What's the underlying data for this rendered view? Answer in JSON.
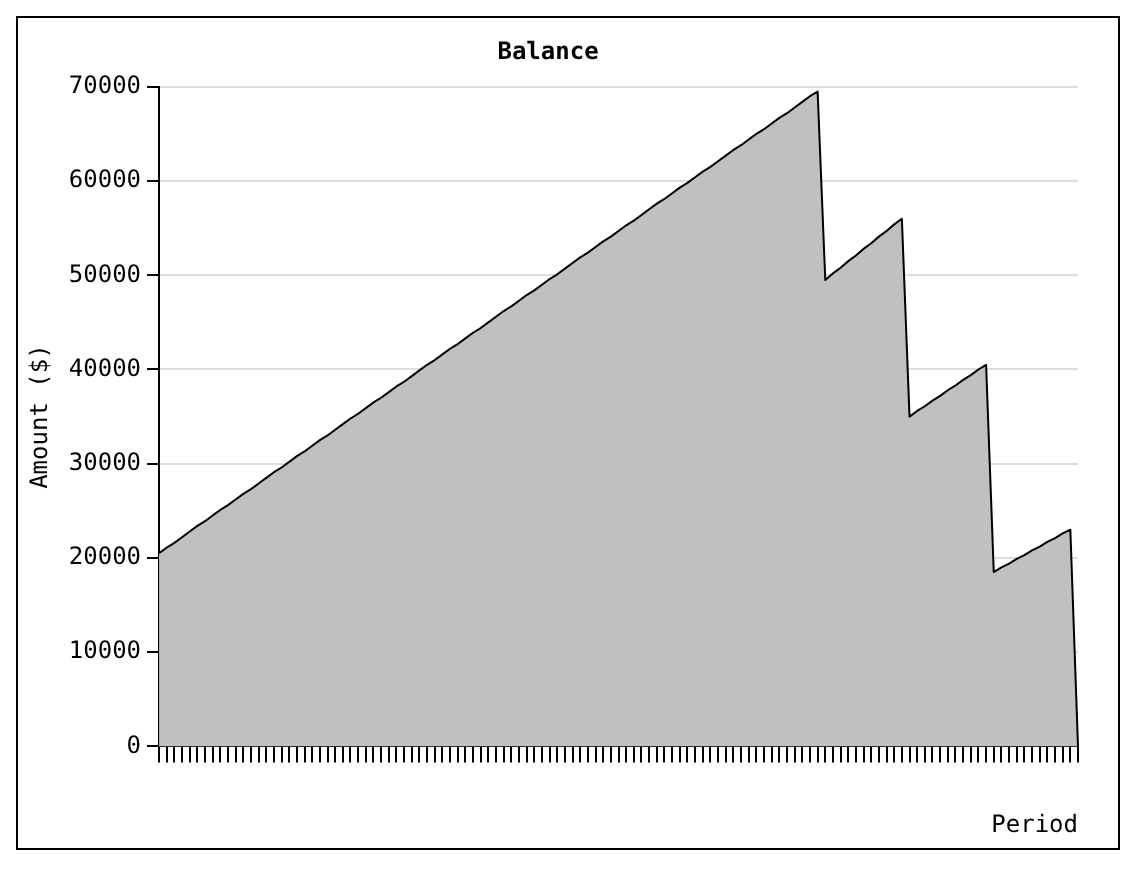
{
  "chart_data": {
    "type": "area",
    "title": "Balance",
    "xlabel": "Period",
    "ylabel": "Amount ($)",
    "categories": [
      null,
      null,
      null,
      null,
      null,
      null,
      null,
      null,
      null,
      null,
      null,
      null,
      null,
      null,
      null,
      null,
      null,
      null,
      null,
      null,
      null,
      null,
      null,
      null,
      null,
      null,
      null,
      null,
      null,
      null,
      null,
      null,
      null,
      null,
      null,
      null,
      null,
      null,
      null,
      null,
      null,
      null,
      null,
      null,
      null,
      null,
      null,
      null,
      null,
      null,
      null,
      null,
      null,
      null,
      null,
      null,
      null,
      null,
      null,
      null,
      null,
      null,
      null,
      null,
      null,
      null,
      null,
      null,
      null,
      null,
      null,
      null,
      null,
      null,
      null,
      null,
      null,
      null,
      null,
      null,
      null,
      null,
      null,
      null,
      null,
      null,
      null,
      null,
      null,
      null,
      null,
      null,
      null,
      null,
      null,
      null,
      null,
      null,
      null,
      null,
      null,
      null,
      null,
      null,
      null,
      null,
      null,
      null,
      null,
      null,
      null,
      null,
      null,
      null,
      null,
      null,
      null,
      null,
      null,
      null,
      null
    ],
    "values": [
      20500,
      21100,
      21600,
      22200,
      22800,
      23400,
      23900,
      24500,
      25100,
      25600,
      26200,
      26800,
      27300,
      27900,
      28500,
      29100,
      29600,
      30200,
      30800,
      31300,
      31900,
      32500,
      33000,
      33600,
      34200,
      34800,
      35300,
      35900,
      36500,
      37000,
      37600,
      38200,
      38700,
      39300,
      39900,
      40500,
      41000,
      41600,
      42200,
      42700,
      43300,
      43900,
      44400,
      45000,
      45600,
      46200,
      46700,
      47300,
      47900,
      48400,
      49000,
      49600,
      50100,
      50700,
      51300,
      51900,
      52400,
      53000,
      53600,
      54100,
      54700,
      55300,
      55800,
      56400,
      57000,
      57600,
      58100,
      58700,
      59300,
      59800,
      60400,
      61000,
      61500,
      62100,
      62700,
      63300,
      63800,
      64400,
      65000,
      65500,
      66100,
      66700,
      67200,
      67800,
      68400,
      69000,
      69500,
      49500,
      50200,
      50800,
      51500,
      52100,
      52800,
      53400,
      54100,
      54700,
      55400,
      56000,
      35000,
      35600,
      36100,
      36700,
      37200,
      37800,
      38300,
      38900,
      39400,
      40000,
      40500,
      18500,
      19000,
      19400,
      19900,
      20300,
      20800,
      21200,
      21700,
      22100,
      22600,
      23000,
      0
    ],
    "color": "#c0c0c0",
    "ylim": [
      0,
      70000
    ],
    "yticks": [
      0,
      10000,
      20000,
      30000,
      40000,
      50000,
      60000,
      70000
    ],
    "grid": "y",
    "legend": false,
    "marker": "none"
  }
}
